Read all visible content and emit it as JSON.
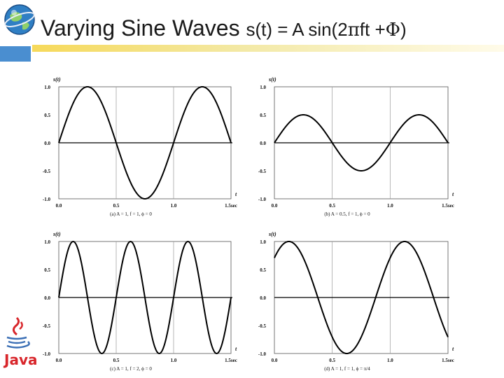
{
  "slide": {
    "title_main": "Varying Sine Waves",
    "title_formula_prefix": "s(t) = A sin(2",
    "title_pi": "π",
    "title_formula_mid": "ft +",
    "title_phi": "Φ",
    "title_formula_suffix": ")",
    "logo_icon": "globe-logo-icon",
    "java_icon": "java-cup-icon",
    "java_label": "Java",
    "accent_colors": {
      "title_rule": "#f6d95a",
      "corner_box": "#4a8ed0",
      "java": "#d8262b"
    }
  },
  "chart_data": [
    {
      "type": "line",
      "ylabel": "s(t)",
      "xlabel": "t",
      "caption": "(a) A = 1, f = 1, ϕ = 0",
      "xlim": [
        0,
        1.5
      ],
      "ylim": [
        -1.0,
        1.0
      ],
      "xticks": [
        "0.0",
        "0.5",
        "1.0",
        "1.5sec"
      ],
      "yticks": [
        "1.0",
        "0.5",
        "0.0",
        "-0.5",
        "-1.0"
      ],
      "grid": "vertical",
      "series": [
        {
          "function": "sine",
          "A": 1,
          "f": 1,
          "phi": 0
        }
      ]
    },
    {
      "type": "line",
      "ylabel": "s(t)",
      "xlabel": "t",
      "caption": "(b) A = 0.5, f = 1, ϕ = 0",
      "xlim": [
        0,
        1.5
      ],
      "ylim": [
        -1.0,
        1.0
      ],
      "xticks": [
        "0.0",
        "0.5",
        "1.0",
        "1.5sec"
      ],
      "yticks": [
        "1.0",
        "0.5",
        "0.0",
        "-0.5",
        "-1.0"
      ],
      "grid": "vertical",
      "series": [
        {
          "function": "sine",
          "A": 0.5,
          "f": 1,
          "phi": 0
        }
      ]
    },
    {
      "type": "line",
      "ylabel": "s(t)",
      "xlabel": "t",
      "caption": "(c) A = 1, f = 2, ϕ = 0",
      "xlim": [
        0,
        1.5
      ],
      "ylim": [
        -1.0,
        1.0
      ],
      "xticks": [
        "0.0",
        "0.5",
        "1.0",
        "1.5sec"
      ],
      "yticks": [
        "1.0",
        "0.5",
        "0.0",
        "-0.5",
        "-1.0"
      ],
      "grid": "vertical",
      "series": [
        {
          "function": "sine",
          "A": 1,
          "f": 2,
          "phi": 0
        }
      ]
    },
    {
      "type": "line",
      "ylabel": "s(t)",
      "xlabel": "t",
      "caption": "(d) A = 1, f = 1, ϕ = π/4",
      "xlim": [
        0,
        1.5
      ],
      "ylim": [
        -1.0,
        1.0
      ],
      "xticks": [
        "0.0",
        "0.5",
        "1.0",
        "1.5sec"
      ],
      "yticks": [
        "1.0",
        "0.5",
        "0.0",
        "-0.5",
        "-1.0"
      ],
      "grid": "vertical",
      "series": [
        {
          "function": "sine",
          "A": 1,
          "f": 1,
          "phi": 0.7854
        }
      ]
    }
  ]
}
